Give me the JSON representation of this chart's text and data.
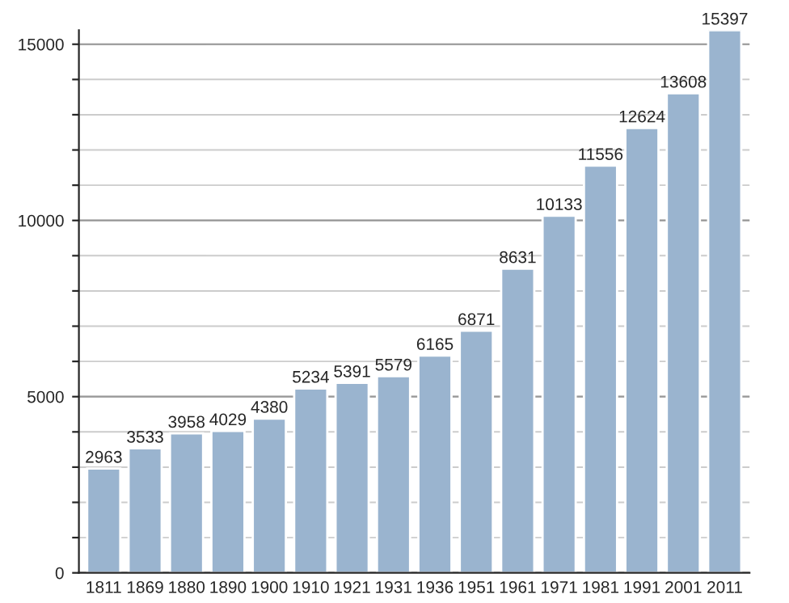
{
  "chart_data": {
    "type": "bar",
    "categories": [
      "1811",
      "1869",
      "1880",
      "1890",
      "1900",
      "1910",
      "1921",
      "1931",
      "1936",
      "1951",
      "1961",
      "1971",
      "1981",
      "1991",
      "2001",
      "2011"
    ],
    "values": [
      2963,
      3533,
      3958,
      4029,
      4380,
      5234,
      5391,
      5579,
      6165,
      6871,
      8631,
      10133,
      11556,
      12624,
      13608,
      15397
    ],
    "color": "#9ab4cf",
    "ylim": [
      0,
      15400
    ],
    "yticks": [
      0,
      {
        "value": 1000,
        "label": null
      },
      {
        "value": 2000,
        "label": null
      },
      {
        "value": 3000,
        "label": null
      },
      {
        "value": 4000,
        "label": null
      },
      5000,
      {
        "value": 6000,
        "label": null
      },
      {
        "value": 7000,
        "label": null
      },
      {
        "value": 8000,
        "label": null
      },
      {
        "value": 9000,
        "label": null
      },
      10000,
      {
        "value": 11000,
        "label": null
      },
      {
        "value": 12000,
        "label": null
      },
      {
        "value": 13000,
        "label": null
      },
      {
        "value": 14000,
        "label": null
      },
      15000
    ],
    "grid": "y",
    "data_labels": true
  }
}
